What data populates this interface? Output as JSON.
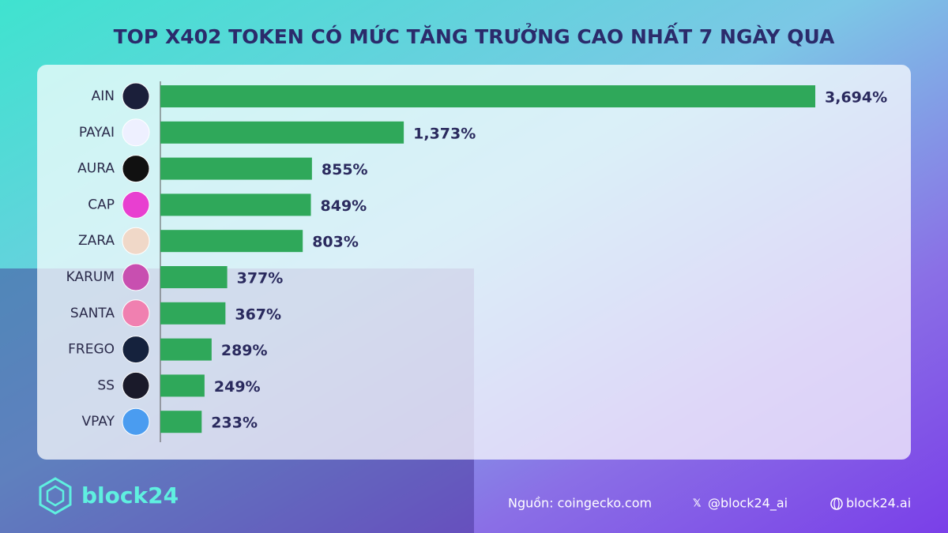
{
  "chart_data": {
    "type": "bar",
    "orientation": "horizontal",
    "title": "TOP X402 TOKEN CÓ MỨC TĂNG TRƯỞNG CAO NHẤT 7 NGÀY QUA",
    "categories": [
      "AIN",
      "PAYAI",
      "AURA",
      "CAP",
      "ZARA",
      "KARUM",
      "SANTA",
      "FREGO",
      "SS",
      "VPAY"
    ],
    "values": [
      3694,
      1373,
      855,
      849,
      803,
      377,
      367,
      289,
      249,
      233
    ],
    "value_labels": [
      "3,694%",
      "1,373%",
      "855%",
      "849%",
      "803%",
      "377%",
      "367%",
      "289%",
      "249%",
      "233%"
    ],
    "color": "#2fa85a"
  },
  "footer": {
    "brand": "block24",
    "source": "Nguồn: coingecko.com",
    "twitter": "@block24_ai",
    "website": "block24.ai"
  }
}
